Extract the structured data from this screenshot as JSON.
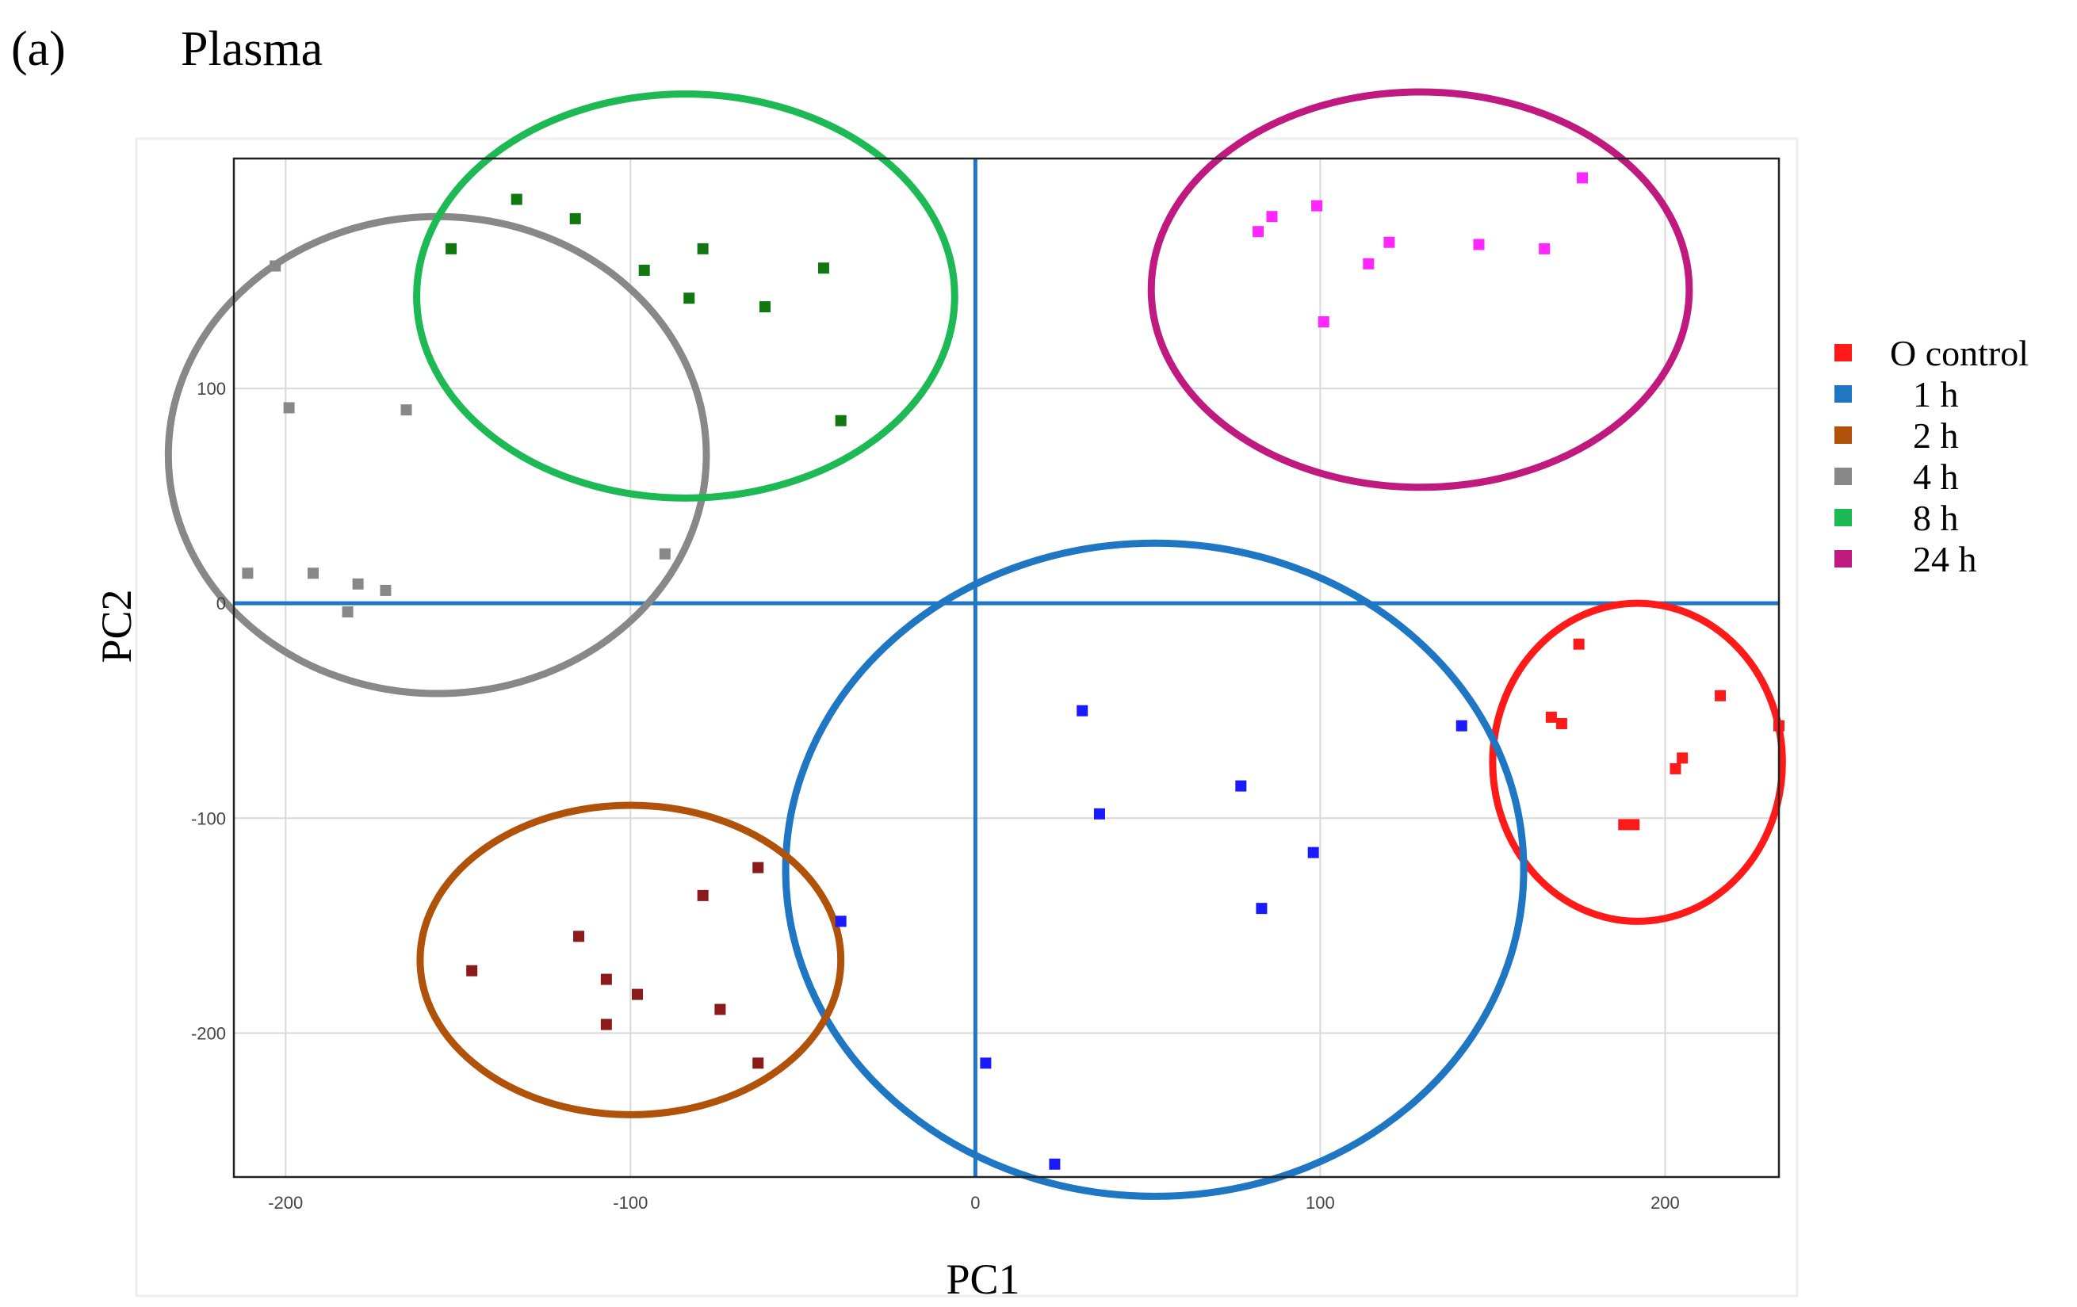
{
  "panel": {
    "label": "(a)",
    "title": "Plasma"
  },
  "chart_data": {
    "type": "scatter",
    "title": "Plasma",
    "xlabel": "PC1",
    "ylabel": "PC2",
    "xlim": [
      -215,
      233
    ],
    "ylim": [
      -267,
      207
    ],
    "xticks": [
      -200,
      -100,
      0,
      100,
      200
    ],
    "yticks": [
      -200,
      -100,
      0,
      100
    ],
    "x_tick_labels": [
      "-200",
      "-100",
      "0",
      "100",
      "200"
    ],
    "y_tick_labels": [
      "-200",
      "-100",
      "0",
      "100"
    ],
    "grid": true,
    "reference_lines": {
      "x": 0,
      "y": 0,
      "color": "#1f77c4"
    },
    "legend_position": "right",
    "legend": [
      {
        "label": "O control",
        "color": "#ff1a1a"
      },
      {
        "label": "1 h",
        "color": "#1f77c4"
      },
      {
        "label": "2 h",
        "color": "#b0520a"
      },
      {
        "label": "4 h",
        "color": "#888888"
      },
      {
        "label": "8 h",
        "color": "#1db954"
      },
      {
        "label": "24 h",
        "color": "#c0197f"
      }
    ],
    "series": [
      {
        "name": "O control",
        "color": "#ff1a1a",
        "ellipse_color": "#ff1a1a",
        "points": [
          [
            175,
            -19
          ],
          [
            216,
            -43
          ],
          [
            167,
            -53
          ],
          [
            170,
            -56
          ],
          [
            233,
            -57
          ],
          [
            203,
            -77
          ],
          [
            205,
            -72
          ],
          [
            188,
            -103
          ],
          [
            191,
            -103
          ]
        ],
        "ellipse": {
          "cx": 192,
          "cy": -74,
          "rx": 42,
          "ry": 74
        }
      },
      {
        "name": "1 h",
        "color": "#1a1aff",
        "ellipse_color": "#1f77c4",
        "points": [
          [
            31,
            -50
          ],
          [
            141,
            -57
          ],
          [
            77,
            -85
          ],
          [
            36,
            -98
          ],
          [
            98,
            -116
          ],
          [
            83,
            -142
          ],
          [
            -39,
            -148
          ],
          [
            3,
            -214
          ],
          [
            23,
            -261
          ]
        ],
        "ellipse": {
          "cx": 52,
          "cy": -124,
          "rx": 107,
          "ry": 152
        }
      },
      {
        "name": "2 h",
        "color": "#8b1a1a",
        "ellipse_color": "#b0520a",
        "points": [
          [
            -63,
            -123
          ],
          [
            -79,
            -136
          ],
          [
            -115,
            -155
          ],
          [
            -146,
            -171
          ],
          [
            -107,
            -175
          ],
          [
            -98,
            -182
          ],
          [
            -74,
            -189
          ],
          [
            -107,
            -196
          ],
          [
            -63,
            -214
          ]
        ],
        "ellipse": {
          "cx": -100,
          "cy": -166,
          "rx": 61,
          "ry": 72
        }
      },
      {
        "name": "4 h",
        "color": "#888888",
        "ellipse_color": "#888888",
        "points": [
          [
            -203,
            157
          ],
          [
            -199,
            91
          ],
          [
            -165,
            90
          ],
          [
            -90,
            23
          ],
          [
            -211,
            14
          ],
          [
            -192,
            14
          ],
          [
            -179,
            9
          ],
          [
            -171,
            6
          ],
          [
            -182,
            -4
          ]
        ],
        "ellipse": {
          "cx": -156,
          "cy": 69,
          "rx": 78,
          "ry": 111
        }
      },
      {
        "name": "8 h",
        "color": "#117711",
        "ellipse_color": "#1db954",
        "points": [
          [
            -133,
            188
          ],
          [
            -116,
            179
          ],
          [
            -152,
            165
          ],
          [
            -79,
            165
          ],
          [
            -96,
            155
          ],
          [
            -44,
            156
          ],
          [
            -83,
            142
          ],
          [
            -61,
            138
          ],
          [
            -39,
            85
          ]
        ],
        "ellipse": {
          "cx": -84,
          "cy": 143,
          "rx": 78,
          "ry": 94
        }
      },
      {
        "name": "24 h",
        "color": "#ff26ff",
        "ellipse_color": "#c0197f",
        "points": [
          [
            176,
            198
          ],
          [
            99,
            185
          ],
          [
            86,
            180
          ],
          [
            82,
            173
          ],
          [
            120,
            168
          ],
          [
            146,
            167
          ],
          [
            165,
            165
          ],
          [
            114,
            158
          ],
          [
            101,
            131
          ]
        ],
        "ellipse": {
          "cx": 129,
          "cy": 146,
          "rx": 78,
          "ry": 92
        }
      }
    ]
  }
}
